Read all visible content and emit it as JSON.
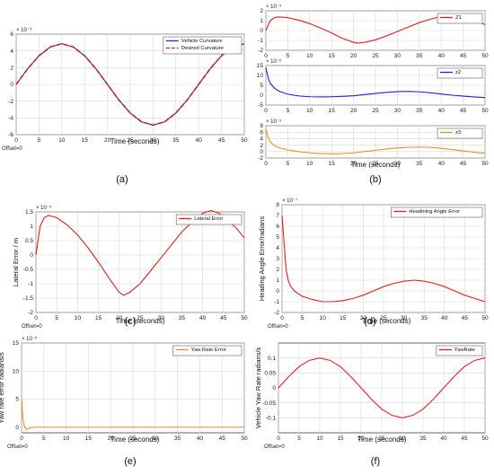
{
  "offset_text": "Offset=0",
  "chart_data": [
    {
      "id": "a",
      "caption": "(a)",
      "type": "line",
      "xlabel": "Time (seconds)",
      "ylabel": "Curvature 1/m",
      "exponent_label": "× 10⁻³",
      "xlim": [
        0,
        50
      ],
      "ylim": [
        -6,
        6
      ],
      "xticks": [
        0,
        5,
        10,
        15,
        20,
        25,
        30,
        35,
        40,
        45,
        50
      ],
      "yticks": [
        -6,
        -4,
        -2,
        0,
        2,
        4,
        6
      ],
      "legend": "top-right",
      "grid": true,
      "series": [
        {
          "name": "Vehicle Curvature",
          "color": "#2b2bd6",
          "dash": "solid",
          "x": [
            0,
            2.5,
            5,
            7.5,
            10,
            12.5,
            15,
            17.5,
            20,
            22.5,
            25,
            27.5,
            30,
            32.5,
            35,
            37.5,
            40,
            42.5,
            45,
            47.5,
            50
          ],
          "y": [
            0,
            1.85,
            3.42,
            4.47,
            4.85,
            4.47,
            3.42,
            1.85,
            0,
            -1.85,
            -3.42,
            -4.47,
            -4.85,
            -4.47,
            -3.42,
            -1.85,
            0,
            1.85,
            3.42,
            4.47,
            4.85
          ]
        },
        {
          "name": "Desired Curvature",
          "color": "#d02020",
          "dash": "dashed",
          "x": [
            0,
            2.5,
            5,
            7.5,
            10,
            12.5,
            15,
            17.5,
            20,
            22.5,
            25,
            27.5,
            30,
            32.5,
            35,
            37.5,
            40,
            42.5,
            45,
            47.5,
            50
          ],
          "y": [
            0,
            1.85,
            3.42,
            4.47,
            4.85,
            4.47,
            3.42,
            1.85,
            0,
            -1.85,
            -3.42,
            -4.47,
            -4.85,
            -4.47,
            -3.42,
            -1.85,
            0,
            1.85,
            3.42,
            4.47,
            4.85
          ]
        }
      ]
    },
    {
      "id": "b1",
      "type": "line",
      "xlabel": "",
      "ylabel": "",
      "exponent_label": "× 10⁻⁵",
      "xlim": [
        0,
        50
      ],
      "ylim": [
        -2,
        2
      ],
      "xticks": [
        0,
        5,
        10,
        15,
        20,
        25,
        30,
        35,
        40,
        45,
        50
      ],
      "yticks": [
        -2,
        -1,
        0,
        1,
        2
      ],
      "legend": "top-right",
      "grid": true,
      "series": [
        {
          "name": "Z1",
          "color": "#e02020",
          "dash": "solid",
          "x": [
            0,
            1,
            2,
            3,
            5,
            7.5,
            10,
            12.5,
            15,
            17.5,
            20,
            21,
            22.5,
            25,
            27.5,
            30,
            32.5,
            35,
            37.5,
            40,
            42,
            44,
            46,
            48,
            50
          ],
          "y": [
            0,
            1.0,
            1.3,
            1.38,
            1.3,
            1.05,
            0.7,
            0.25,
            -0.25,
            -0.8,
            -1.2,
            -1.28,
            -1.2,
            -0.95,
            -0.55,
            -0.1,
            0.35,
            0.8,
            1.15,
            1.42,
            1.5,
            1.42,
            1.2,
            0.95,
            0.6
          ]
        }
      ]
    },
    {
      "id": "b2",
      "type": "line",
      "xlabel": "",
      "ylabel": "",
      "exponent_label": "× 10⁻⁶",
      "xlim": [
        0,
        50
      ],
      "ylim": [
        -5,
        15
      ],
      "xticks": [
        0,
        5,
        10,
        15,
        20,
        25,
        30,
        35,
        40,
        45,
        50
      ],
      "yticks": [
        -5,
        0,
        5,
        10,
        15
      ],
      "legend": "top-right",
      "grid": true,
      "series": [
        {
          "name": "z2",
          "color": "#2020e0",
          "dash": "solid",
          "x": [
            0,
            0.5,
            1,
            2,
            3,
            5,
            7.5,
            10,
            12.5,
            15,
            17.5,
            20,
            22.5,
            25,
            27.5,
            30,
            32.5,
            35,
            37.5,
            40,
            42.5,
            45,
            47.5,
            50
          ],
          "y": [
            14,
            9,
            6,
            3.5,
            2,
            0.5,
            -0.4,
            -0.8,
            -0.9,
            -0.8,
            -0.6,
            -0.3,
            0.3,
            0.9,
            1.4,
            1.8,
            1.9,
            1.7,
            1.2,
            0.6,
            0,
            -0.5,
            -0.9,
            -1.2
          ]
        }
      ]
    },
    {
      "id": "b3",
      "type": "line",
      "caption": "(b)",
      "xlabel": "Time (seconds)",
      "ylabel": "",
      "exponent_label": "× 10⁻³",
      "xlim": [
        0,
        50
      ],
      "ylim": [
        -2,
        8
      ],
      "xticks": [
        0,
        5,
        10,
        15,
        20,
        25,
        30,
        35,
        40,
        45,
        50
      ],
      "yticks": [
        -2,
        0,
        2,
        4,
        6,
        8
      ],
      "legend": "top-right",
      "grid": true,
      "series": [
        {
          "name": "z3",
          "color": "#e89020",
          "dash": "solid",
          "x": [
            0,
            0.5,
            1,
            2,
            3,
            5,
            7.5,
            10,
            12.5,
            15,
            17.5,
            20,
            22.5,
            25,
            27.5,
            30,
            32.5,
            35,
            37.5,
            40,
            42.5,
            45,
            47.5,
            50
          ],
          "y": [
            7,
            4.5,
            3,
            1.8,
            1.2,
            0.5,
            0,
            -0.4,
            -0.6,
            -0.7,
            -0.6,
            -0.4,
            0,
            0.4,
            0.8,
            1.1,
            1.3,
            1.4,
            1.3,
            1.0,
            0.6,
            0.2,
            -0.2,
            -0.5
          ]
        }
      ]
    },
    {
      "id": "c",
      "caption": "(c)",
      "type": "line",
      "xlabel": "Time (seconds)",
      "ylabel": "Lateral Error / m",
      "exponent_label": "× 10⁻⁵",
      "xlim": [
        0,
        50
      ],
      "ylim": [
        -2,
        1.5
      ],
      "xticks": [
        0,
        5,
        10,
        15,
        20,
        25,
        30,
        35,
        40,
        45,
        50
      ],
      "yticks": [
        -2,
        -1.5,
        -1,
        -0.5,
        0,
        0.5,
        1,
        1.5
      ],
      "legend": "top-right",
      "grid": true,
      "series": [
        {
          "name": "Lateral Error",
          "color": "#e02020",
          "dash": "solid",
          "x": [
            0,
            1,
            2,
            3,
            5,
            7.5,
            10,
            12.5,
            15,
            17.5,
            20,
            21,
            22.5,
            25,
            27.5,
            30,
            32.5,
            35,
            37.5,
            40,
            42,
            44,
            46,
            48,
            50
          ],
          "y": [
            0,
            1.0,
            1.3,
            1.38,
            1.3,
            1.05,
            0.7,
            0.25,
            -0.25,
            -0.8,
            -1.3,
            -1.4,
            -1.3,
            -1.0,
            -0.55,
            -0.1,
            0.35,
            0.8,
            1.15,
            1.45,
            1.55,
            1.45,
            1.2,
            0.95,
            0.6
          ]
        }
      ]
    },
    {
      "id": "d",
      "caption": "(d)",
      "type": "line",
      "xlabel": "Time (seconds)",
      "ylabel": "Heading Angle Error/radians",
      "exponent_label": "× 10⁻⁷",
      "xlim": [
        0,
        50
      ],
      "ylim": [
        -2,
        8
      ],
      "xticks": [
        0,
        5,
        10,
        15,
        20,
        25,
        30,
        35,
        40,
        45,
        50
      ],
      "yticks": [
        -2,
        -1,
        0,
        1,
        2,
        3,
        4,
        5,
        6,
        7,
        8
      ],
      "legend": "top-right",
      "grid": true,
      "series": [
        {
          "name": "Headining Angle Error",
          "color": "#e02020",
          "dash": "solid",
          "x": [
            0,
            0.3,
            0.7,
            1,
            1.5,
            2,
            3,
            5,
            7.5,
            10,
            12.5,
            15,
            17.5,
            20,
            22.5,
            25,
            27.5,
            30,
            32.5,
            35,
            37.5,
            40,
            42.5,
            45,
            47.5,
            50
          ],
          "y": [
            7,
            5.5,
            3.5,
            2,
            1,
            0.5,
            0,
            -0.5,
            -0.8,
            -1.0,
            -1.0,
            -0.9,
            -0.7,
            -0.4,
            0,
            0.4,
            0.7,
            0.9,
            1.0,
            0.9,
            0.7,
            0.4,
            0,
            -0.4,
            -0.7,
            -1.0
          ]
        }
      ]
    },
    {
      "id": "e",
      "caption": "(e)",
      "type": "line",
      "xlabel": "Time (seconds)",
      "ylabel": "Yaw rate error radians/s",
      "exponent_label": "× 10⁻⁶",
      "xlim": [
        0,
        50
      ],
      "ylim": [
        -1,
        15
      ],
      "xticks": [
        0,
        5,
        10,
        15,
        20,
        25,
        30,
        35,
        40,
        45,
        50
      ],
      "yticks": [
        0,
        5,
        10,
        15
      ],
      "legend": "top-right",
      "grid": true,
      "series": [
        {
          "name": "Yaw Rate Error",
          "color": "#e89020",
          "dash": "solid",
          "x": [
            0,
            0.3,
            0.6,
            1,
            1.5,
            2,
            3,
            5,
            10,
            20,
            30,
            40,
            50
          ],
          "y": [
            5,
            1.5,
            0.2,
            -0.4,
            -0.3,
            -0.1,
            0,
            0,
            0,
            0,
            0,
            0,
            0
          ]
        }
      ]
    },
    {
      "id": "f",
      "caption": "(f)",
      "type": "line",
      "xlabel": "Time (seconds)",
      "ylabel": "Vehicle Yaw Rate radians/s",
      "exponent_label": "",
      "xlim": [
        0,
        50
      ],
      "ylim": [
        -0.15,
        0.15
      ],
      "xticks": [
        0,
        5,
        10,
        15,
        20,
        25,
        30,
        35,
        40,
        45,
        50
      ],
      "yticks": [
        -0.1,
        -0.05,
        0,
        0.05,
        0.1
      ],
      "legend": "top-right",
      "grid": true,
      "series": [
        {
          "name": "YawRate",
          "color": "#e02020",
          "dash": "solid",
          "x": [
            0,
            2.5,
            5,
            7.5,
            10,
            12.5,
            15,
            17.5,
            20,
            22.5,
            25,
            27.5,
            30,
            32.5,
            35,
            37.5,
            40,
            42.5,
            45,
            47.5,
            50
          ],
          "y": [
            0,
            0.038,
            0.071,
            0.092,
            0.1,
            0.092,
            0.071,
            0.038,
            0,
            -0.038,
            -0.071,
            -0.092,
            -0.1,
            -0.092,
            -0.071,
            -0.038,
            0,
            0.038,
            0.071,
            0.092,
            0.1
          ]
        }
      ]
    }
  ]
}
